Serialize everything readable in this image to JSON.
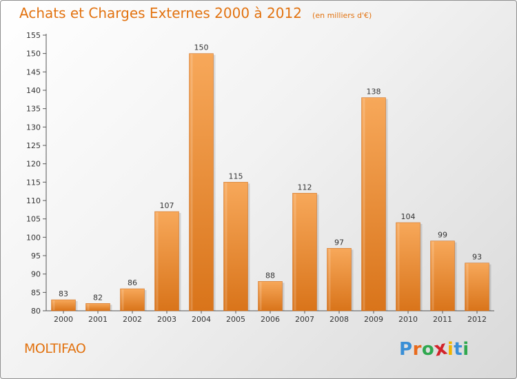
{
  "header": {
    "title": "Achats et Charges Externes 2000 à 2012",
    "subtitle": "(en milliers d'€)"
  },
  "footer": {
    "commune": "MOLTIFAO",
    "logo": {
      "letters": [
        "P",
        "r",
        "o",
        "x",
        "i",
        "t",
        "i"
      ],
      "colors": [
        "#3a8fd6",
        "#e86a1c",
        "#2fa84f",
        "#d2232a",
        "#f0b400",
        "#3a8fd6",
        "#2fa84f"
      ]
    }
  },
  "colors": {
    "bar_light": "#f7a85a",
    "bar_dark": "#d9741a",
    "accent": "#e2720f"
  },
  "chart_data": {
    "type": "bar",
    "title": "Achats et Charges Externes 2000 à 2012",
    "subtitle": "(en milliers d'€)",
    "categories": [
      "2000",
      "2001",
      "2002",
      "2003",
      "2004",
      "2005",
      "2006",
      "2007",
      "2008",
      "2009",
      "2010",
      "2011",
      "2012"
    ],
    "values": [
      83,
      82,
      86,
      107,
      150,
      115,
      88,
      112,
      97,
      138,
      104,
      99,
      93
    ],
    "ylim": [
      80,
      155
    ],
    "yticks": [
      80,
      85,
      90,
      95,
      100,
      105,
      110,
      115,
      120,
      125,
      130,
      135,
      140,
      145,
      150,
      155
    ],
    "grid": false,
    "data_labels": true
  }
}
